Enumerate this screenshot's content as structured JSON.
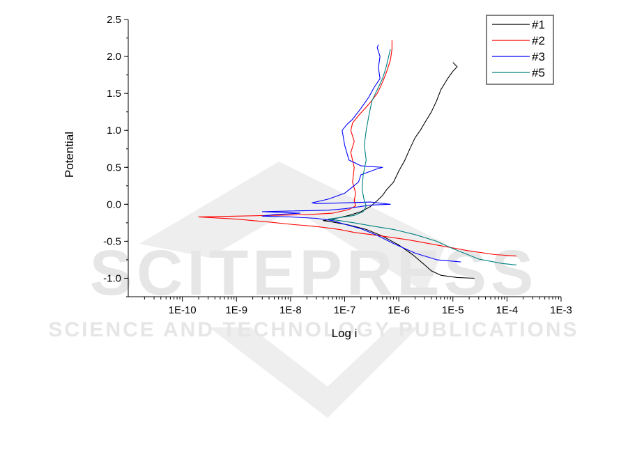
{
  "watermark": {
    "title": "SCITEPRESS",
    "subtitle": "SCIENCE AND TECHNOLOGY PUBLICATIONS"
  },
  "chart_data": {
    "type": "line",
    "xlabel": "Log i",
    "ylabel": "Potential",
    "xscale": "log",
    "xlim": [
      1e-11,
      0.001
    ],
    "ylim": [
      -1.25,
      2.5
    ],
    "xticks": [
      {
        "value": 1e-10,
        "label": "1E-10"
      },
      {
        "value": 1e-09,
        "label": "1E-9"
      },
      {
        "value": 1e-08,
        "label": "1E-8"
      },
      {
        "value": 1e-07,
        "label": "1E-7"
      },
      {
        "value": 1e-06,
        "label": "1E-6"
      },
      {
        "value": 1e-05,
        "label": "1E-5"
      },
      {
        "value": 0.0001,
        "label": "1E-4"
      },
      {
        "value": 0.001,
        "label": "1E-3"
      }
    ],
    "yticks": [
      {
        "value": -1.0,
        "label": "-1.0"
      },
      {
        "value": -0.5,
        "label": "-0.5"
      },
      {
        "value": 0.0,
        "label": "0.0"
      },
      {
        "value": 0.5,
        "label": "0.5"
      },
      {
        "value": 1.0,
        "label": "1.0"
      },
      {
        "value": 1.5,
        "label": "1.5"
      },
      {
        "value": 2.0,
        "label": "2.0"
      },
      {
        "value": 2.5,
        "label": "2.5"
      }
    ],
    "grid": false,
    "legend": "top-right",
    "series": [
      {
        "name": "#1",
        "color": "#000000",
        "points": [
          [
            2.5e-05,
            -1.0
          ],
          [
            1.2e-05,
            -0.99
          ],
          [
            6e-06,
            -0.96
          ],
          [
            4e-06,
            -0.9
          ],
          [
            2.8e-06,
            -0.8
          ],
          [
            1.8e-06,
            -0.68
          ],
          [
            1e-06,
            -0.55
          ],
          [
            5e-07,
            -0.43
          ],
          [
            2.5e-07,
            -0.34
          ],
          [
            1.2e-07,
            -0.28
          ],
          [
            6e-08,
            -0.24
          ],
          [
            4e-08,
            -0.22
          ],
          [
            6e-08,
            -0.2
          ],
          [
            1.2e-07,
            -0.15
          ],
          [
            2e-07,
            -0.1
          ],
          [
            3e-07,
            -0.03
          ],
          [
            4e-07,
            0.05
          ],
          [
            5e-07,
            0.12
          ],
          [
            6e-07,
            0.2
          ],
          [
            8e-07,
            0.3
          ],
          [
            1e-06,
            0.45
          ],
          [
            1.3e-06,
            0.6
          ],
          [
            1.6e-06,
            0.75
          ],
          [
            2e-06,
            0.9
          ],
          [
            2.5e-06,
            1.0
          ],
          [
            3e-06,
            1.1
          ],
          [
            4e-06,
            1.25
          ],
          [
            5e-06,
            1.4
          ],
          [
            6e-06,
            1.55
          ],
          [
            8e-06,
            1.7
          ],
          [
            1e-05,
            1.8
          ],
          [
            1.2e-05,
            1.86
          ],
          [
            1e-05,
            1.92
          ]
        ]
      },
      {
        "name": "#2",
        "color": "#ff0000",
        "points": [
          [
            0.00015,
            -0.7
          ],
          [
            6e-05,
            -0.68
          ],
          [
            2e-05,
            -0.63
          ],
          [
            6e-06,
            -0.56
          ],
          [
            1.5e-06,
            -0.48
          ],
          [
            4e-07,
            -0.42
          ],
          [
            1.5e-07,
            -0.38
          ],
          [
            8e-08,
            -0.34
          ],
          [
            3e-08,
            -0.3
          ],
          [
            1e-08,
            -0.27
          ],
          [
            4e-09,
            -0.24
          ],
          [
            1e-09,
            -0.2
          ],
          [
            2e-10,
            -0.17
          ],
          [
            1e-09,
            -0.16
          ],
          [
            4e-09,
            -0.15
          ],
          [
            2e-08,
            -0.14
          ],
          [
            6e-08,
            -0.12
          ],
          [
            1.2e-07,
            -0.07
          ],
          [
            1.6e-07,
            -0.02
          ],
          [
            1.5e-07,
            0.05
          ],
          [
            1.6e-07,
            0.15
          ],
          [
            1.4e-07,
            0.3
          ],
          [
            1.5e-07,
            0.5
          ],
          [
            1.3e-07,
            0.7
          ],
          [
            1.5e-07,
            0.85
          ],
          [
            1.3e-07,
            1.0
          ],
          [
            1.4e-07,
            1.1
          ],
          [
            1.8e-07,
            1.2
          ],
          [
            2.4e-07,
            1.3
          ],
          [
            3e-07,
            1.38
          ],
          [
            4e-07,
            1.5
          ],
          [
            5e-07,
            1.65
          ],
          [
            6e-07,
            1.8
          ],
          [
            7e-07,
            1.95
          ],
          [
            7.5e-07,
            2.1
          ],
          [
            7.5e-07,
            2.22
          ]
        ]
      },
      {
        "name": "#3",
        "color": "#0000ff",
        "points": [
          [
            1.4e-05,
            -0.78
          ],
          [
            5e-06,
            -0.75
          ],
          [
            2e-06,
            -0.66
          ],
          [
            8e-07,
            -0.53
          ],
          [
            4e-07,
            -0.42
          ],
          [
            2e-07,
            -0.33
          ],
          [
            1e-07,
            -0.27
          ],
          [
            6e-08,
            -0.22
          ],
          [
            3e-08,
            -0.19
          ],
          [
            1e-08,
            -0.17
          ],
          [
            3e-09,
            -0.16
          ],
          [
            5e-09,
            -0.14
          ],
          [
            1.5e-08,
            -0.12
          ],
          [
            3e-09,
            -0.1
          ],
          [
            1e-08,
            -0.09
          ],
          [
            5e-08,
            -0.08
          ],
          [
            1e-07,
            -0.06
          ],
          [
            2e-07,
            -0.03
          ],
          [
            3e-07,
            -0.01
          ],
          [
            7e-07,
            0.0
          ],
          [
            3e-07,
            0.03
          ],
          [
            1e-07,
            0.02
          ],
          [
            3e-08,
            0.01
          ],
          [
            2.5e-08,
            0.02
          ],
          [
            5e-08,
            0.07
          ],
          [
            1e-07,
            0.15
          ],
          [
            1.8e-07,
            0.3
          ],
          [
            2e-07,
            0.4
          ],
          [
            4e-07,
            0.48
          ],
          [
            5e-07,
            0.5
          ],
          [
            2e-07,
            0.52
          ],
          [
            1.2e-07,
            0.6
          ],
          [
            1e-07,
            0.8
          ],
          [
            9e-08,
            1.0
          ],
          [
            1.1e-07,
            1.08
          ],
          [
            1.4e-07,
            1.15
          ],
          [
            2e-07,
            1.3
          ],
          [
            2.8e-07,
            1.45
          ],
          [
            3.5e-07,
            1.58
          ],
          [
            4.5e-07,
            1.7
          ],
          [
            4.2e-07,
            1.85
          ],
          [
            4.5e-07,
            2.0
          ],
          [
            4e-07,
            2.12
          ],
          [
            4.2e-07,
            2.16
          ]
        ]
      },
      {
        "name": "#5",
        "color": "#008080",
        "points": [
          [
            0.00015,
            -0.82
          ],
          [
            8e-05,
            -0.8
          ],
          [
            3e-05,
            -0.74
          ],
          [
            1e-05,
            -0.6
          ],
          [
            5e-06,
            -0.5
          ],
          [
            2e-06,
            -0.41
          ],
          [
            8e-07,
            -0.34
          ],
          [
            3e-07,
            -0.29
          ],
          [
            1.5e-07,
            -0.25
          ],
          [
            8e-08,
            -0.22
          ],
          [
            5e-08,
            -0.2
          ],
          [
            8e-08,
            -0.18
          ],
          [
            1.5e-07,
            -0.15
          ],
          [
            2.2e-07,
            -0.1
          ],
          [
            2.5e-07,
            -0.02
          ],
          [
            2.3e-07,
            0.05
          ],
          [
            2.1e-07,
            0.2
          ],
          [
            2.2e-07,
            0.4
          ],
          [
            2.5e-07,
            0.6
          ],
          [
            2.3e-07,
            0.8
          ],
          [
            2.5e-07,
            1.0
          ],
          [
            2.8e-07,
            1.2
          ],
          [
            3.2e-07,
            1.4
          ],
          [
            4e-07,
            1.55
          ],
          [
            5e-07,
            1.7
          ],
          [
            5.8e-07,
            1.85
          ],
          [
            6.5e-07,
            2.0
          ],
          [
            7e-07,
            2.1
          ]
        ]
      }
    ]
  }
}
